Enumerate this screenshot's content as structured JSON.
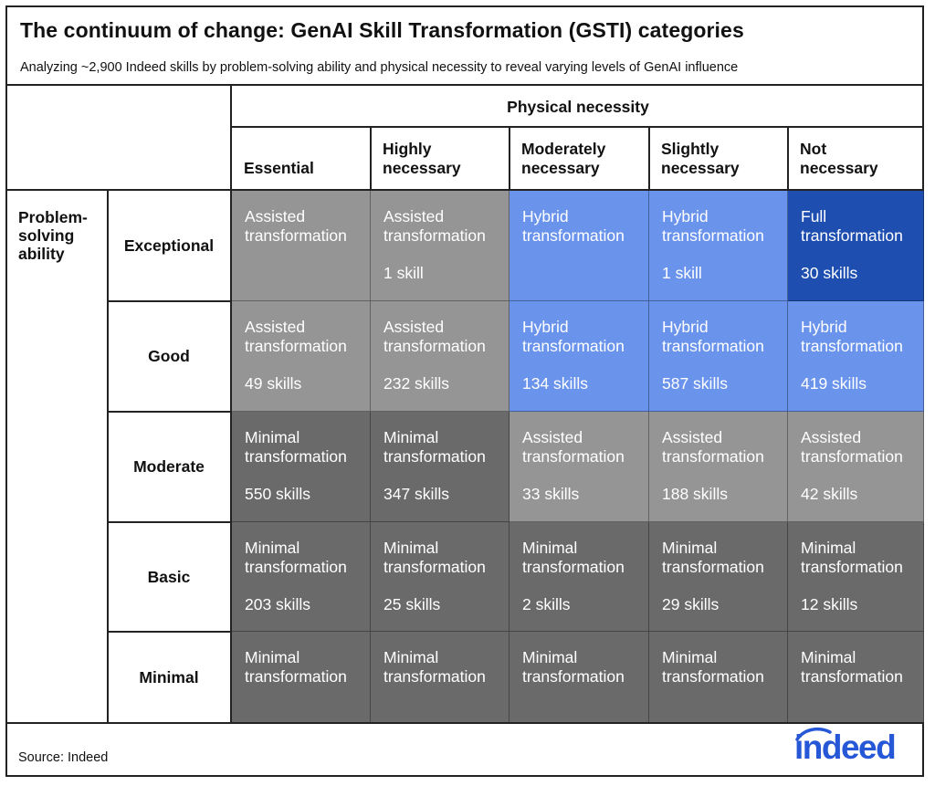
{
  "title": "The continuum of change: GenAI Skill Transformation (GSTI) categories",
  "subtitle": "Analyzing ~2,900 Indeed skills by problem-solving ability and physical necessity to reveal varying levels of GenAI influence",
  "source": "Source: Indeed",
  "logo_text": "indeed",
  "colors": {
    "minimal": "#6a6a6a",
    "assisted": "#959595",
    "hybrid": "#6a93ec",
    "full": "#1e4fb0"
  },
  "chart_data": {
    "type": "table",
    "column_axis_label": "Physical necessity",
    "row_axis_label": [
      "Problem-",
      "solving",
      "ability"
    ],
    "columns": [
      [
        "Essential"
      ],
      [
        "Highly",
        "necessary"
      ],
      [
        "Moderately",
        "necessary"
      ],
      [
        "Slightly",
        "necessary"
      ],
      [
        "Not",
        "necessary"
      ]
    ],
    "rows": [
      "Exceptional",
      "Good",
      "Moderate",
      "Basic",
      "Minimal"
    ],
    "cells": [
      [
        {
          "category": [
            "Assisted",
            "transformation"
          ],
          "count": "",
          "level": "assisted"
        },
        {
          "category": [
            "Assisted",
            "transformation"
          ],
          "count": "1 skill",
          "level": "assisted"
        },
        {
          "category": [
            "Hybrid",
            "transformation"
          ],
          "count": "",
          "level": "hybrid"
        },
        {
          "category": [
            "Hybrid",
            "transformation"
          ],
          "count": "1 skill",
          "level": "hybrid"
        },
        {
          "category": [
            "Full",
            "transformation"
          ],
          "count": "30 skills",
          "level": "full"
        }
      ],
      [
        {
          "category": [
            "Assisted",
            "transformation"
          ],
          "count": "49 skills",
          "level": "assisted"
        },
        {
          "category": [
            "Assisted",
            "transformation"
          ],
          "count": "232 skills",
          "level": "assisted"
        },
        {
          "category": [
            "Hybrid",
            "transformation"
          ],
          "count": "134 skills",
          "level": "hybrid"
        },
        {
          "category": [
            "Hybrid",
            "transformation"
          ],
          "count": "587 skills",
          "level": "hybrid"
        },
        {
          "category": [
            "Hybrid",
            "transformation"
          ],
          "count": "419 skills",
          "level": "hybrid"
        }
      ],
      [
        {
          "category": [
            "Minimal",
            "transformation"
          ],
          "count": "550 skills",
          "level": "minimal"
        },
        {
          "category": [
            "Minimal",
            "transformation"
          ],
          "count": "347 skills",
          "level": "minimal"
        },
        {
          "category": [
            "Assisted",
            "transformation"
          ],
          "count": "33 skills",
          "level": "assisted"
        },
        {
          "category": [
            "Assisted",
            "transformation"
          ],
          "count": "188 skills",
          "level": "assisted"
        },
        {
          "category": [
            "Assisted",
            "transformation"
          ],
          "count": "42 skills",
          "level": "assisted"
        }
      ],
      [
        {
          "category": [
            "Minimal",
            "transformation"
          ],
          "count": "203 skills",
          "level": "minimal"
        },
        {
          "category": [
            "Minimal",
            "transformation"
          ],
          "count": "25 skills",
          "level": "minimal"
        },
        {
          "category": [
            "Minimal",
            "transformation"
          ],
          "count": "2 skills",
          "level": "minimal"
        },
        {
          "category": [
            "Minimal",
            "transformation"
          ],
          "count": "29 skills",
          "level": "minimal"
        },
        {
          "category": [
            "Minimal",
            "transformation"
          ],
          "count": "12 skills",
          "level": "minimal"
        }
      ],
      [
        {
          "category": [
            "Minimal",
            "transformation"
          ],
          "count": "",
          "level": "minimal"
        },
        {
          "category": [
            "Minimal",
            "transformation"
          ],
          "count": "",
          "level": "minimal"
        },
        {
          "category": [
            "Minimal",
            "transformation"
          ],
          "count": "",
          "level": "minimal"
        },
        {
          "category": [
            "Minimal",
            "transformation"
          ],
          "count": "",
          "level": "minimal"
        },
        {
          "category": [
            "Minimal",
            "transformation"
          ],
          "count": "",
          "level": "minimal"
        }
      ]
    ]
  }
}
